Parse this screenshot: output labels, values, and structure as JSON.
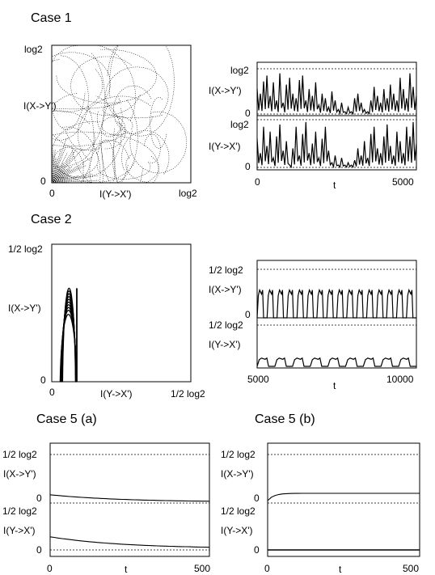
{
  "chart_data": [
    {
      "id": "c1a",
      "type": "scatter",
      "title": "Case 1",
      "xlabel": "I(Y->X')",
      "ylabel": "I(X->Y')",
      "xtick_labels": [
        "0",
        "log2"
      ],
      "ytick_labels": [
        "0",
        "log2"
      ],
      "xlim": [
        0,
        1
      ],
      "ylim": [
        0,
        1
      ],
      "style": "dotted trajectory (dense chaotic loops)"
    },
    {
      "id": "c1b",
      "type": "line",
      "xlabel": "t",
      "xtick_labels": [
        "0",
        "5000"
      ],
      "xlim": [
        0,
        5000
      ],
      "panels": [
        {
          "ylabel": "I(X->Y')",
          "ytick_labels": [
            "0",
            "log2"
          ],
          "ylim": [
            0,
            1
          ],
          "values": [
            0.55,
            0.45,
            0.72,
            0.85,
            0.4,
            0.7,
            0.3,
            0.9,
            0.25,
            0.65,
            0.8,
            0.45,
            0.35,
            0.75,
            0.85,
            0.3,
            0.55,
            0.4,
            0.7,
            0.2,
            0.45,
            0.35,
            0.15,
            0.5,
            0.3,
            0.1,
            0.25,
            0.05,
            0.15,
            0.05,
            0.35,
            0.45,
            0.25,
            0.1,
            0.05,
            0.3,
            0.6,
            0.4,
            0.25,
            0.55,
            0.35,
            0.65,
            0.45,
            0.3,
            0.8,
            0.55,
            0.35,
            0.9,
            0.6,
            0.4
          ]
        },
        {
          "ylabel": "I(Y->X')",
          "ytick_labels": [
            "0",
            "log2"
          ],
          "ylim": [
            0,
            1
          ],
          "values": [
            0.6,
            0.3,
            0.85,
            0.45,
            0.75,
            0.2,
            0.65,
            0.9,
            0.35,
            0.55,
            0.05,
            0.4,
            0.85,
            0.25,
            0.7,
            0.95,
            0.3,
            0.5,
            0.75,
            0.2,
            0.6,
            0.85,
            0.35,
            0.1,
            0.25,
            0.05,
            0.2,
            0.05,
            0.1,
            0.05,
            0.15,
            0.4,
            0.25,
            0.55,
            0.2,
            0.7,
            0.85,
            0.4,
            0.3,
            0.65,
            0.9,
            0.45,
            0.25,
            0.75,
            0.55,
            0.3,
            0.85,
            0.65,
            0.95,
            0.5
          ]
        }
      ]
    },
    {
      "id": "c2a",
      "type": "line",
      "title": "Case 2",
      "xlabel": "I(Y->X')",
      "ylabel": "I(X->Y')",
      "xtick_labels": [
        "0",
        "1/2 log2"
      ],
      "ytick_labels": [
        "0",
        "1/2 log2"
      ],
      "xlim": [
        0,
        1
      ],
      "ylim": [
        0,
        1
      ],
      "arc_x_range": [
        0.06,
        0.18
      ],
      "arc_peaks": [
        0.57,
        0.6,
        0.62,
        0.64,
        0.66,
        0.68,
        0.7,
        0.72,
        0.74,
        0.76
      ]
    },
    {
      "id": "c2b",
      "type": "line",
      "xlabel": "t",
      "xtick_labels": [
        "5000",
        "10000"
      ],
      "xlim": [
        5000,
        10000
      ],
      "panels": [
        {
          "ylabel": "I(X->Y')",
          "ytick_labels": [
            "0",
            "1/2 log2"
          ],
          "ylim": [
            0,
            1
          ],
          "pulses": 16,
          "peak_level": 0.65
        },
        {
          "ylabel": "I(Y->X')",
          "ytick_labels": [
            "0",
            "1/2 log2"
          ],
          "ylim": [
            0,
            1
          ],
          "pulses": 9,
          "peak_level": 0.2
        }
      ]
    },
    {
      "id": "c5a",
      "type": "line",
      "title": "Case 5 (a)",
      "xlabel": "t",
      "xtick_labels": [
        "0",
        "500"
      ],
      "xlim": [
        0,
        500
      ],
      "panels": [
        {
          "ylabel": "I(X->Y')",
          "ytick_labels": [
            "0",
            "1/2 log2"
          ],
          "ylim": [
            0,
            1
          ],
          "start": 0.17,
          "end": 0.02
        },
        {
          "ylabel": "I(Y->X')",
          "ytick_labels": [
            "0",
            "1/2 log2"
          ],
          "ylim": [
            0,
            1
          ],
          "start": 0.28,
          "end": 0.03
        }
      ]
    },
    {
      "id": "c5b",
      "type": "line",
      "title": "Case 5 (b)",
      "xlabel": "t",
      "xtick_labels": [
        "0",
        "500"
      ],
      "xlim": [
        0,
        500
      ],
      "panels": [
        {
          "ylabel": "I(X->Y')",
          "ytick_labels": [
            "0",
            "1/2 log2"
          ],
          "ylim": [
            0,
            1
          ],
          "start": 0.05,
          "plateau": 0.2
        },
        {
          "ylabel": "I(Y->X')",
          "ytick_labels": [
            "0",
            "1/2 log2"
          ],
          "ylim": [
            0,
            1
          ],
          "constant": 0.0
        }
      ]
    }
  ]
}
